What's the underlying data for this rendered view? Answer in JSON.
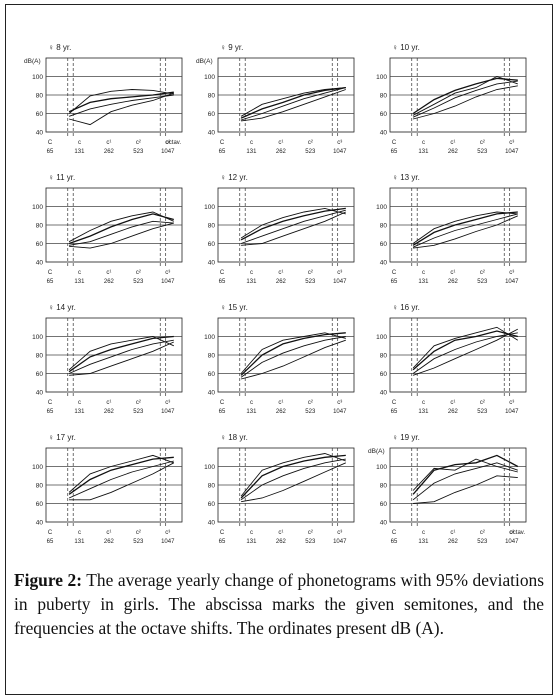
{
  "figure": {
    "caption_label": "Figure 2:",
    "caption_text": " The average yearly change of phonetograms with 95% deviations in puberty in girls. The abscissa marks the given semitones, and the frequencies at the octave shifts. The ordinates present dB (A)."
  },
  "chart_data": [
    {
      "type": "line",
      "title": "8 yr.",
      "ylabel": "dB(A)",
      "xlabel": "octav.",
      "ylim": [
        40,
        120
      ],
      "yticks": [
        40,
        60,
        80,
        100
      ],
      "x_ticks_freq": [
        "65",
        "131",
        "262",
        "523",
        "1047"
      ],
      "x_ticks_note": [
        "C",
        "c",
        "c¹",
        "c²",
        "c³"
      ],
      "series": [
        {
          "values": [
            62,
            72,
            76,
            78,
            80,
            83
          ]
        },
        {
          "values": [
            57,
            65,
            70,
            74,
            77,
            80
          ]
        },
        {
          "values": [
            54,
            48,
            62,
            69,
            74,
            82
          ]
        },
        {
          "values": [
            60,
            79,
            84,
            86,
            85,
            81
          ]
        }
      ]
    },
    {
      "type": "line",
      "title": "9 yr.",
      "ylabel": "dB(A)",
      "xlabel": "",
      "ylim": [
        40,
        120
      ],
      "yticks": [
        40,
        60,
        80,
        100
      ],
      "x_ticks_freq": [
        "65",
        "131",
        "262",
        "523",
        "1047"
      ],
      "x_ticks_note": [
        "C",
        "c",
        "c¹",
        "c²",
        "c³"
      ],
      "series": [
        {
          "values": [
            55,
            65,
            72,
            80,
            85,
            88
          ]
        },
        {
          "values": [
            53,
            60,
            68,
            76,
            82,
            88
          ]
        },
        {
          "values": [
            52,
            55,
            62,
            70,
            78,
            86
          ]
        },
        {
          "values": [
            57,
            70,
            76,
            82,
            86,
            88
          ]
        }
      ]
    },
    {
      "type": "line",
      "title": "10 yr.",
      "ylabel": "",
      "xlabel": "",
      "ylim": [
        40,
        120
      ],
      "yticks": [
        40,
        60,
        80,
        100
      ],
      "x_ticks_freq": [
        "65",
        "131",
        "262",
        "523",
        "1047"
      ],
      "x_ticks_note": [
        "C",
        "c",
        "c¹",
        "c²",
        "c³"
      ],
      "series": [
        {
          "values": [
            60,
            75,
            85,
            92,
            98,
            96
          ]
        },
        {
          "values": [
            56,
            66,
            77,
            85,
            92,
            95
          ]
        },
        {
          "values": [
            54,
            60,
            68,
            78,
            86,
            90
          ]
        },
        {
          "values": [
            58,
            70,
            82,
            88,
            100,
            92
          ]
        }
      ]
    },
    {
      "type": "line",
      "title": "11 yr.",
      "ylabel": "",
      "xlabel": "",
      "ylim": [
        40,
        120
      ],
      "yticks": [
        40,
        60,
        80,
        100
      ],
      "x_ticks_freq": [
        "65",
        "131",
        "262",
        "523",
        "1047"
      ],
      "x_ticks_note": [
        "C",
        "c",
        "c¹",
        "c²",
        "c³"
      ],
      "series": [
        {
          "values": [
            60,
            68,
            78,
            86,
            92,
            86
          ]
        },
        {
          "values": [
            58,
            62,
            70,
            78,
            84,
            82
          ]
        },
        {
          "values": [
            57,
            55,
            60,
            68,
            76,
            82
          ]
        },
        {
          "values": [
            62,
            74,
            84,
            90,
            94,
            84
          ]
        }
      ]
    },
    {
      "type": "line",
      "title": "12 yr.",
      "ylabel": "",
      "xlabel": "",
      "ylim": [
        40,
        120
      ],
      "yticks": [
        40,
        60,
        80,
        100
      ],
      "x_ticks_freq": [
        "65",
        "131",
        "262",
        "523",
        "1047"
      ],
      "x_ticks_note": [
        "C",
        "c",
        "c¹",
        "c²",
        "c³"
      ],
      "series": [
        {
          "values": [
            64,
            76,
            84,
            90,
            95,
            98
          ]
        },
        {
          "values": [
            60,
            68,
            76,
            84,
            90,
            96
          ]
        },
        {
          "values": [
            58,
            60,
            68,
            76,
            84,
            94
          ]
        },
        {
          "values": [
            66,
            80,
            88,
            94,
            98,
            92
          ]
        }
      ]
    },
    {
      "type": "line",
      "title": "13 yr.",
      "ylabel": "",
      "xlabel": "",
      "ylim": [
        40,
        120
      ],
      "yticks": [
        40,
        60,
        80,
        100
      ],
      "x_ticks_freq": [
        "65",
        "131",
        "262",
        "523",
        "1047"
      ],
      "x_ticks_note": [
        "C",
        "c",
        "c¹",
        "c²",
        "c³"
      ],
      "series": [
        {
          "values": [
            58,
            72,
            80,
            86,
            92,
            94
          ]
        },
        {
          "values": [
            56,
            66,
            74,
            80,
            86,
            92
          ]
        },
        {
          "values": [
            55,
            58,
            65,
            73,
            80,
            90
          ]
        },
        {
          "values": [
            60,
            76,
            84,
            90,
            94,
            92
          ]
        }
      ]
    },
    {
      "type": "line",
      "title": "14 yr.",
      "ylabel": "",
      "xlabel": "",
      "ylim": [
        40,
        120
      ],
      "yticks": [
        40,
        60,
        80,
        100
      ],
      "x_ticks_freq": [
        "65",
        "131",
        "262",
        "523",
        "1047"
      ],
      "x_ticks_note": [
        "C",
        "c",
        "c¹",
        "c²",
        "c³"
      ],
      "series": [
        {
          "values": [
            62,
            78,
            86,
            92,
            98,
            100
          ]
        },
        {
          "values": [
            60,
            70,
            78,
            86,
            92,
            96
          ]
        },
        {
          "values": [
            58,
            60,
            68,
            76,
            84,
            94
          ]
        },
        {
          "values": [
            64,
            84,
            92,
            96,
            100,
            90
          ]
        }
      ]
    },
    {
      "type": "line",
      "title": "15 yr.",
      "ylabel": "",
      "xlabel": "",
      "ylim": [
        40,
        120
      ],
      "yticks": [
        40,
        60,
        80,
        100
      ],
      "x_ticks_freq": [
        "65",
        "131",
        "262",
        "523",
        "1047"
      ],
      "x_ticks_note": [
        "C",
        "c",
        "c¹",
        "c²",
        "c³"
      ],
      "series": [
        {
          "values": [
            58,
            80,
            92,
            98,
            102,
            104
          ]
        },
        {
          "values": [
            56,
            72,
            82,
            90,
            96,
            100
          ]
        },
        {
          "values": [
            54,
            60,
            68,
            78,
            88,
            96
          ]
        },
        {
          "values": [
            60,
            86,
            96,
            100,
            104,
            98
          ]
        }
      ]
    },
    {
      "type": "line",
      "title": "16 yr.",
      "ylabel": "",
      "xlabel": "",
      "ylim": [
        40,
        120
      ],
      "yticks": [
        40,
        60,
        80,
        100
      ],
      "x_ticks_freq": [
        "65",
        "131",
        "262",
        "523",
        "1047"
      ],
      "x_ticks_note": [
        "C",
        "c",
        "c¹",
        "c²",
        "c³"
      ],
      "series": [
        {
          "values": [
            64,
            84,
            96,
            100,
            106,
            100
          ]
        },
        {
          "values": [
            60,
            76,
            86,
            94,
            100,
            104
          ]
        },
        {
          "values": [
            58,
            66,
            76,
            86,
            96,
            108
          ]
        },
        {
          "values": [
            66,
            90,
            98,
            104,
            110,
            96
          ]
        }
      ]
    },
    {
      "type": "line",
      "title": "17 yr.",
      "ylabel": "",
      "xlabel": "",
      "ylim": [
        40,
        120
      ],
      "yticks": [
        40,
        60,
        80,
        100
      ],
      "x_ticks_freq": [
        "65",
        "131",
        "262",
        "523",
        "1047"
      ],
      "x_ticks_note": [
        "C",
        "c",
        "c¹",
        "c²",
        "c³"
      ],
      "series": [
        {
          "values": [
            70,
            86,
            96,
            102,
            108,
            110
          ]
        },
        {
          "values": [
            66,
            76,
            86,
            94,
            100,
            106
          ]
        },
        {
          "values": [
            64,
            64,
            72,
            82,
            92,
            104
          ]
        },
        {
          "values": [
            72,
            92,
            100,
            106,
            112,
            104
          ]
        }
      ]
    },
    {
      "type": "line",
      "title": "18 yr.",
      "ylabel": "",
      "xlabel": "",
      "ylim": [
        40,
        120
      ],
      "yticks": [
        40,
        60,
        80,
        100
      ],
      "x_ticks_freq": [
        "65",
        "131",
        "262",
        "523",
        "1047"
      ],
      "x_ticks_note": [
        "C",
        "c",
        "c¹",
        "c²",
        "c³"
      ],
      "series": [
        {
          "values": [
            66,
            90,
            100,
            106,
            110,
            112
          ]
        },
        {
          "values": [
            64,
            80,
            90,
            98,
            104,
            108
          ]
        },
        {
          "values": [
            62,
            66,
            74,
            84,
            94,
            104
          ]
        },
        {
          "values": [
            68,
            96,
            104,
            110,
            114,
            106
          ]
        }
      ]
    },
    {
      "type": "line",
      "title": "19 yr.",
      "ylabel": "dB(A)",
      "xlabel": "octav.",
      "ylim": [
        40,
        120
      ],
      "yticks": [
        40,
        60,
        80,
        100
      ],
      "x_ticks_freq": [
        "65",
        "131",
        "262",
        "523",
        "1047"
      ],
      "x_ticks_note": [
        "C",
        "c",
        "c¹",
        "c²",
        "c³"
      ],
      "series": [
        {
          "values": [
            70,
            96,
            102,
            104,
            112,
            100
          ]
        },
        {
          "values": [
            64,
            82,
            92,
            98,
            104,
            96
          ]
        },
        {
          "values": [
            60,
            62,
            72,
            80,
            90,
            88
          ]
        },
        {
          "values": [
            74,
            98,
            96,
            108,
            100,
            94
          ]
        }
      ]
    }
  ]
}
